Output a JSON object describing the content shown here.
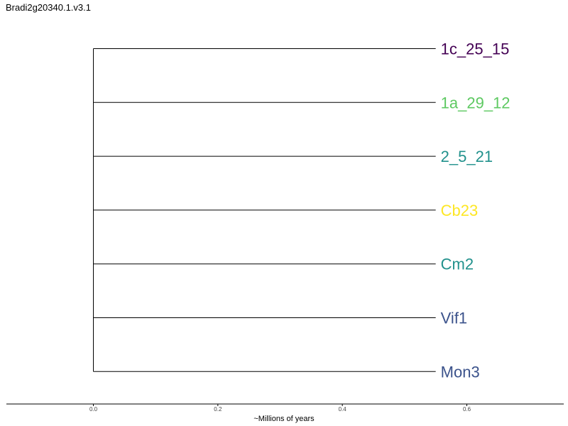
{
  "title": "Bradi2g20340.1.v3.1",
  "chart_data": {
    "type": "dendrogram",
    "title": "Bradi2g20340.1.v3.1",
    "xlabel": "~Millions of years",
    "xticks": [
      0.0,
      0.2,
      0.4,
      0.6
    ],
    "xtick_labels": [
      "0.0",
      "0.2",
      "0.4",
      "0.6"
    ],
    "xlim": [
      -0.14,
      0.76
    ],
    "grid": false,
    "root_x": 0.0,
    "leaves": [
      {
        "label": "1c_25_15",
        "branch_end": 0.55,
        "color": "#440154"
      },
      {
        "label": "1a_29_12",
        "branch_end": 0.55,
        "color": "#5ec962"
      },
      {
        "label": "2_5_21",
        "branch_end": 0.55,
        "color": "#21918c"
      },
      {
        "label": "Cb23",
        "branch_end": 0.55,
        "color": "#fde725"
      },
      {
        "label": "Cm2",
        "branch_end": 0.55,
        "color": "#21918c"
      },
      {
        "label": "Vif1",
        "branch_end": 0.55,
        "color": "#3b528b"
      },
      {
        "label": "Mon3",
        "branch_end": 0.55,
        "color": "#3b528b"
      }
    ]
  }
}
